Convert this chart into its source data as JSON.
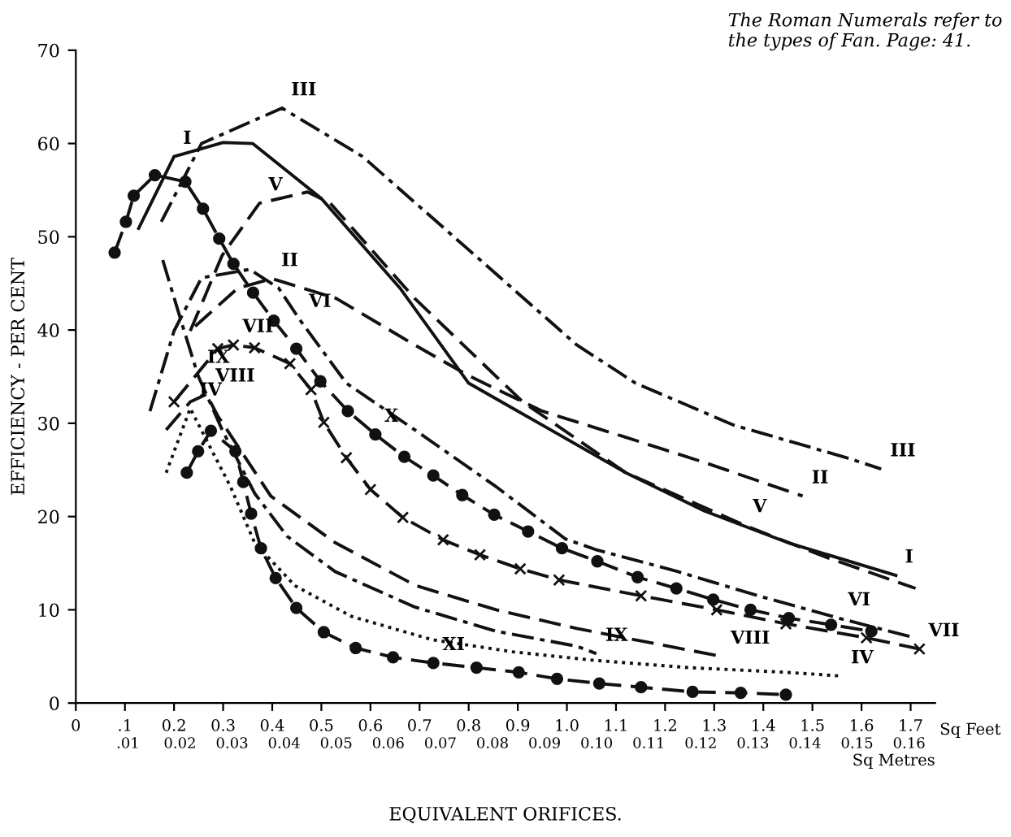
{
  "chart_data": {
    "type": "line",
    "xlabel": "EQUIVALENT ORIFICES.",
    "ylabel": "EFFICIENCY - PER CENT",
    "x2label": "Sq Metres",
    "xlim": [
      0,
      1.75
    ],
    "ylim": [
      0,
      70
    ],
    "xticks": [
      0,
      {
        "value": 0.1,
        "label": ".1"
      },
      {
        "value": 0.2,
        "label": "0.2"
      },
      {
        "value": 0.3,
        "label": "0.3"
      },
      {
        "value": 0.4,
        "label": "0.4"
      },
      {
        "value": 0.5,
        "label": "0.5"
      },
      {
        "value": 0.6,
        "label": "0.6"
      },
      {
        "value": 0.7,
        "label": "0.7"
      },
      {
        "value": 0.8,
        "label": "0.8"
      },
      {
        "value": 0.9,
        "label": "0.9"
      },
      {
        "value": 1.0,
        "label": "1.0"
      },
      {
        "value": 1.1,
        "label": "1.1"
      },
      {
        "value": 1.2,
        "label": "1.2"
      },
      {
        "value": 1.3,
        "label": "1.3"
      },
      {
        "value": 1.4,
        "label": "1.4"
      },
      {
        "value": 1.5,
        "label": "1.5"
      },
      {
        "value": 1.6,
        "label": "1.6"
      },
      {
        "value": 1.7,
        "label": "1.7"
      }
    ],
    "x2lim": [
      0,
      0.165
    ],
    "x2ticks": [
      {
        "value": 0.01,
        "label": ".01"
      },
      {
        "value": 0.02,
        "label": "0.02"
      },
      {
        "value": 0.03,
        "label": "0.03"
      },
      {
        "value": 0.04,
        "label": "0.04"
      },
      {
        "value": 0.05,
        "label": "0.05"
      },
      {
        "value": 0.06,
        "label": "0.06"
      },
      {
        "value": 0.07,
        "label": "0.07"
      },
      {
        "value": 0.08,
        "label": "0.08"
      },
      {
        "value": 0.09,
        "label": "0.09"
      },
      {
        "value": 0.1,
        "label": "0.10"
      },
      {
        "value": 0.11,
        "label": "0.11"
      },
      {
        "value": 0.12,
        "label": "0.12"
      },
      {
        "value": 0.13,
        "label": "0.13"
      },
      {
        "value": 0.14,
        "label": "0.14"
      },
      {
        "value": 0.15,
        "label": "0.15"
      },
      {
        "value": 0.16,
        "label": "0.16"
      }
    ],
    "yticks": [
      0,
      10,
      20,
      30,
      40,
      50,
      60,
      70
    ],
    "grid": false,
    "legend": false,
    "series": [
      {
        "color": "#111111",
        "line_style": "solid",
        "x": [
          0.128,
          0.2,
          0.3,
          0.36,
          0.5,
          0.66,
          0.8,
          0.95,
          1.12,
          1.28,
          1.45,
          1.67
        ],
        "values": [
          50.9,
          58.6,
          60.1,
          60,
          54.1,
          44.5,
          34.3,
          29.8,
          24.7,
          20.6,
          17.2,
          13.7
        ]
      },
      {
        "color": "#111111",
        "line_style": "dashed",
        "x": [
          0.243,
          0.33,
          0.4,
          0.53,
          0.69,
          0.8,
          0.95,
          1.12,
          1.28,
          1.48
        ],
        "values": [
          40.4,
          44.5,
          45.5,
          43.4,
          38.4,
          35.1,
          31.3,
          28.5,
          25.8,
          22.2
        ]
      },
      {
        "color": "#111111",
        "line_style": "dashdot",
        "x": [
          0.174,
          0.256,
          0.42,
          0.584,
          0.8,
          1.02,
          1.14,
          1.34,
          1.57,
          1.64
        ],
        "values": [
          51.6,
          60,
          63.8,
          58.6,
          48.6,
          38.4,
          34.3,
          29.8,
          26.3,
          25.1
        ]
      },
      {
        "color": "#111111",
        "line_style": "dotted",
        "x": [
          0.184,
          0.233,
          0.315,
          0.364,
          0.446,
          0.561,
          0.725,
          0.889,
          1.052,
          1.249,
          1.446,
          1.56
        ],
        "values": [
          24.7,
          31.6,
          23.2,
          17.2,
          12.6,
          9.3,
          6.8,
          5.5,
          4.6,
          3.8,
          3.3,
          2.9
        ]
      },
      {
        "color": "#111111",
        "line_style": "dashed",
        "x": [
          0.233,
          0.298,
          0.374,
          0.472,
          0.518,
          0.69,
          0.91,
          1.12,
          1.36,
          1.53,
          1.71
        ],
        "values": [
          39.9,
          48,
          53.6,
          54.8,
          53.6,
          43.4,
          32.3,
          24.7,
          19.1,
          15.6,
          12.3
        ]
      },
      {
        "color": "#111111",
        "line_style": "dashdot",
        "x": [
          0.151,
          0.2,
          0.256,
          0.354,
          0.413,
          0.456,
          0.551,
          0.69,
          0.856,
          0.997,
          1.062,
          1.226,
          1.39,
          1.554,
          1.708
        ],
        "values": [
          31.3,
          39.9,
          45.6,
          46.5,
          44.5,
          41.1,
          34.3,
          29.3,
          23.2,
          17.6,
          16.4,
          14.1,
          11.5,
          9.1,
          7.0
        ]
      },
      {
        "color": "#111111",
        "line_style": "dashed",
        "marker": "cross",
        "x": [
          0.2,
          0.289,
          0.321,
          0.364,
          0.436,
          0.479,
          0.505,
          0.551,
          0.6,
          0.666,
          0.748,
          0.823,
          0.905,
          0.984,
          1.151,
          1.305,
          1.446,
          1.61,
          1.718
        ],
        "values": [
          32.3,
          38.0,
          38.4,
          38.1,
          36.4,
          33.6,
          30.1,
          26.3,
          22.9,
          19.9,
          17.5,
          15.9,
          14.4,
          13.2,
          11.5,
          10.0,
          8.5,
          7.0,
          5.8
        ]
      },
      {
        "color": "#111111",
        "line_style": "dashed",
        "x": [
          0.184,
          0.233,
          0.266,
          0.289,
          0.397,
          0.528,
          0.692,
          0.856,
          1.02,
          1.118,
          1.315
        ],
        "values": [
          29.3,
          32.3,
          33.1,
          30.8,
          22.2,
          17.2,
          12.6,
          10.0,
          8.0,
          7.0,
          5.0
        ]
      },
      {
        "color": "#111111",
        "line_style": "dashdot",
        "x": [
          0.177,
          0.216,
          0.249,
          0.298,
          0.364,
          0.43,
          0.528,
          0.69,
          0.856,
          1.02,
          1.06
        ],
        "values": [
          47.5,
          40.7,
          35.1,
          29.3,
          22.5,
          17.9,
          14.1,
          10.3,
          7.7,
          6.1,
          5.3
        ]
      },
      {
        "color": "#111111",
        "line_style": "dashed",
        "marker": "circle",
        "x": [
          0.079,
          0.102,
          0.118,
          0.161,
          0.223,
          0.259,
          0.292,
          0.321,
          0.361,
          0.403,
          0.449,
          0.498,
          0.554,
          0.61,
          0.669,
          0.728,
          0.787,
          0.852,
          0.921,
          0.99,
          1.062,
          1.144,
          1.223,
          1.298,
          1.374,
          1.452,
          1.538,
          1.62
        ],
        "values": [
          48.3,
          51.6,
          54.4,
          56.6,
          55.9,
          53.0,
          49.8,
          47.1,
          44.0,
          41.0,
          38.0,
          34.5,
          31.3,
          28.8,
          26.4,
          24.4,
          22.3,
          20.2,
          18.4,
          16.6,
          15.2,
          13.5,
          12.3,
          11.1,
          10.0,
          9.1,
          8.4,
          7.7
        ]
      },
      {
        "color": "#111111",
        "line_style": "dashed",
        "marker": "circle",
        "x": [
          0.226,
          0.249,
          0.275,
          0.325,
          0.341,
          0.357,
          0.377,
          0.407,
          0.449,
          0.505,
          0.57,
          0.646,
          0.728,
          0.816,
          0.902,
          0.98,
          1.066,
          1.151,
          1.256,
          1.354,
          1.446
        ],
        "values": [
          24.7,
          27.0,
          29.2,
          27.0,
          23.7,
          20.3,
          16.6,
          13.4,
          10.2,
          7.6,
          5.9,
          4.9,
          4.3,
          3.8,
          3.3,
          2.6,
          2.1,
          1.7,
          1.2,
          1.1,
          0.9
        ]
      }
    ],
    "annotations": [
      "The Roman Numerals refer to the types of Fan. Page: 41.",
      "Sq Feet",
      {
        "text": "I",
        "x": 0.2,
        "y": 58.6
      },
      {
        "text": "I",
        "x": 1.67,
        "y": 13.7
      },
      {
        "text": "II",
        "x": 0.4,
        "y": 45.5
      },
      {
        "text": "II",
        "x": 1.48,
        "y": 22.2
      },
      {
        "text": "III",
        "x": 0.42,
        "y": 63.8
      },
      {
        "text": "III",
        "x": 1.64,
        "y": 25.1
      },
      {
        "text": "IV",
        "x": 0.233,
        "y": 31.6
      },
      {
        "text": "IV",
        "x": 1.56,
        "y": 2.9
      },
      {
        "text": "V",
        "x": 0.374,
        "y": 53.6
      },
      {
        "text": "V",
        "x": 1.36,
        "y": 19.1
      },
      {
        "text": "VI",
        "x": 0.456,
        "y": 41.1
      },
      {
        "text": "VI",
        "x": 1.554,
        "y": 9.1
      },
      {
        "text": "VII",
        "x": 0.321,
        "y": 38.4
      },
      {
        "text": "VII",
        "x": 1.718,
        "y": 5.8
      },
      {
        "text": "VIII",
        "x": 0.266,
        "y": 33.1
      },
      {
        "text": "VIII",
        "x": 1.315,
        "y": 5.0
      },
      {
        "text": "IX",
        "x": 0.249,
        "y": 35.1
      },
      {
        "text": "IX",
        "x": 1.06,
        "y": 5.3
      },
      {
        "text": "X",
        "x": 0.61,
        "y": 28.8
      },
      {
        "text": "XI",
        "x": 0.728,
        "y": 4.3
      }
    ]
  }
}
